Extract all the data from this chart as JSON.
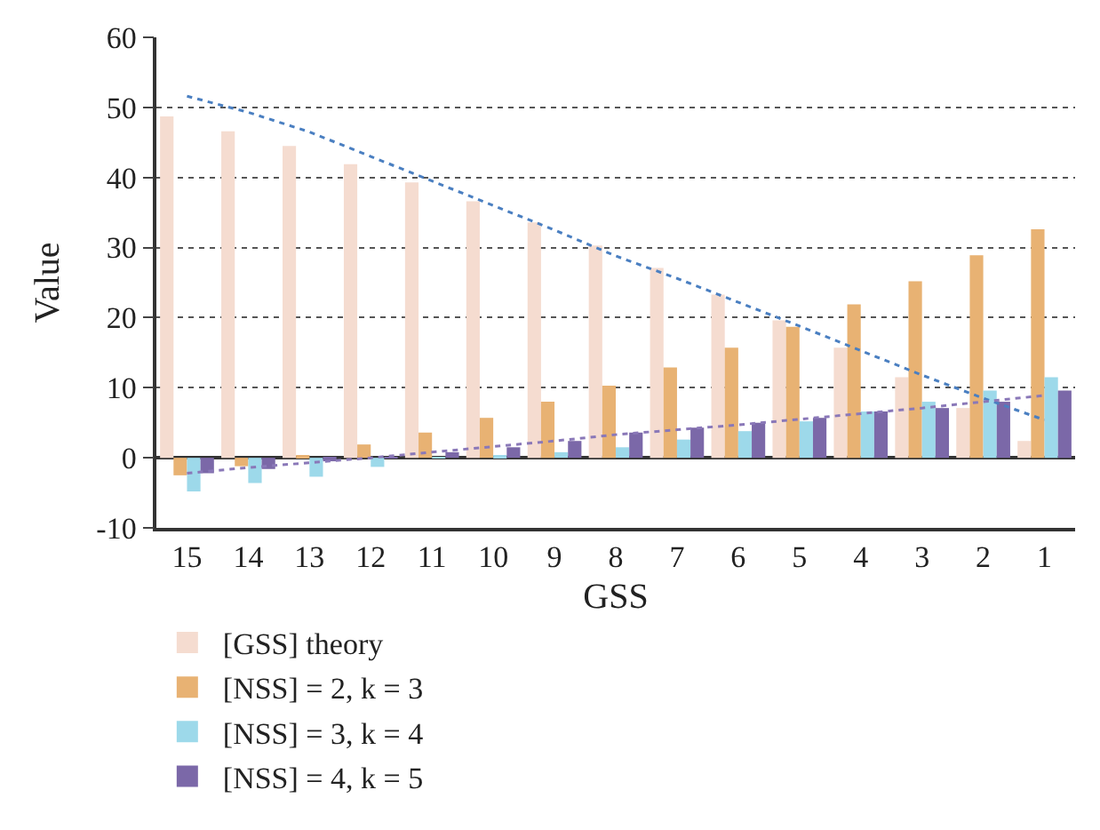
{
  "chart_data": {
    "type": "bar",
    "xlabel": "GSS",
    "ylabel": "Value",
    "categories": [
      "15",
      "14",
      "13",
      "12",
      "11",
      "10",
      "9",
      "8",
      "7",
      "6",
      "5",
      "4",
      "3",
      "2",
      "1"
    ],
    "series": [
      {
        "name": "[GSS] theory",
        "color": "#f5dcd0",
        "values": [
          48.7,
          46.6,
          44.5,
          41.9,
          39.3,
          36.6,
          33.6,
          30.3,
          27.1,
          23.3,
          19.6,
          15.7,
          11.5,
          7.1,
          2.4
        ]
      },
      {
        "name": "[NSS] = 2, k = 3",
        "color": "#e8b273",
        "values": [
          -2.5,
          -1.2,
          0.3,
          1.9,
          3.6,
          5.7,
          8.0,
          10.3,
          12.9,
          15.7,
          18.7,
          21.9,
          25.2,
          28.9,
          32.6
        ]
      },
      {
        "name": "[NSS] = 3, k = 4",
        "color": "#9dd9ea",
        "values": [
          -4.8,
          -3.6,
          -2.7,
          -1.3,
          0.1,
          0.3,
          0.8,
          1.5,
          2.6,
          3.8,
          5.2,
          6.6,
          8.0,
          9.6,
          11.5
        ]
      },
      {
        "name": "[NSS] = 4, k = 5",
        "color": "#7b68a8",
        "values": [
          -2.2,
          -1.6,
          -0.5,
          -0.1,
          0.8,
          1.5,
          2.4,
          3.6,
          4.3,
          5.0,
          5.7,
          6.6,
          7.1,
          8.0,
          9.6
        ]
      },
      {
        "type": "line",
        "color": "#4a7fc1",
        "line_style": "dotted",
        "values": [
          51.6,
          49.3,
          46.5,
          43.0,
          39.5,
          36.0,
          32.5,
          28.8,
          25.6,
          22.2,
          18.8,
          15.3,
          11.8,
          8.5,
          5.4
        ]
      },
      {
        "type": "line",
        "color": "#8a78b8",
        "line_style": "dotted",
        "values": [
          -2.2,
          -1.4,
          -0.7,
          0.0,
          0.8,
          1.6,
          2.4,
          3.3,
          4.0,
          4.7,
          5.5,
          6.3,
          7.1,
          8.0,
          8.9
        ]
      }
    ],
    "ylim": [
      -10,
      60
    ],
    "yticks": [
      -10,
      0,
      10,
      20,
      30,
      40,
      50,
      60
    ],
    "grid": "y",
    "legend": "bottom left"
  }
}
